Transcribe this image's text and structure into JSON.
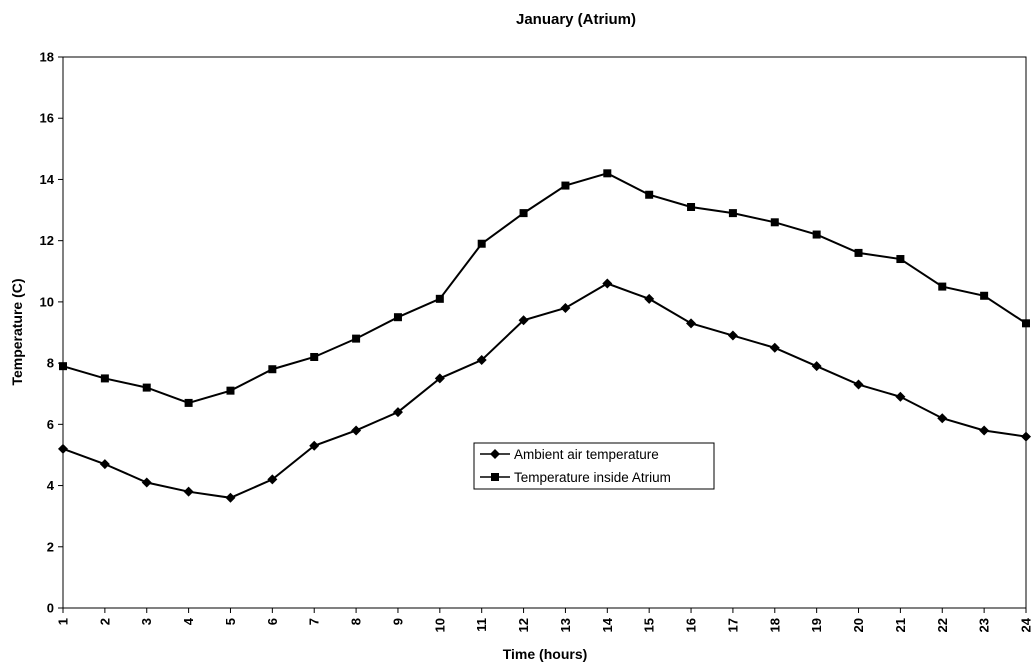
{
  "chart_data": {
    "type": "line",
    "title": "January (Atrium)",
    "xlabel": "Time (hours)",
    "ylabel": "Temperature (C)",
    "x": [
      1,
      2,
      3,
      4,
      5,
      6,
      7,
      8,
      9,
      10,
      11,
      12,
      13,
      14,
      15,
      16,
      17,
      18,
      19,
      20,
      21,
      22,
      23,
      24
    ],
    "xlim": [
      1,
      24
    ],
    "ylim": [
      0,
      18
    ],
    "yticks": [
      0,
      2,
      4,
      6,
      8,
      10,
      12,
      14,
      16,
      18
    ],
    "grid": false,
    "legend_position": "center",
    "series": [
      {
        "name": "Ambient air temperature",
        "marker": "diamond",
        "color": "#000000",
        "values": [
          5.2,
          4.7,
          4.1,
          3.8,
          3.6,
          4.2,
          5.3,
          5.8,
          6.4,
          7.5,
          8.1,
          9.4,
          9.8,
          10.6,
          10.1,
          9.3,
          8.9,
          8.5,
          7.9,
          7.3,
          6.9,
          6.2,
          5.8,
          5.6
        ]
      },
      {
        "name": "Temperature inside Atrium",
        "marker": "square",
        "color": "#000000",
        "values": [
          7.9,
          7.5,
          7.2,
          6.7,
          7.1,
          7.8,
          8.2,
          8.8,
          9.5,
          10.1,
          11.9,
          12.9,
          13.8,
          14.2,
          13.5,
          13.1,
          12.9,
          12.6,
          12.2,
          11.6,
          11.4,
          10.5,
          10.2,
          9.3
        ]
      }
    ]
  }
}
